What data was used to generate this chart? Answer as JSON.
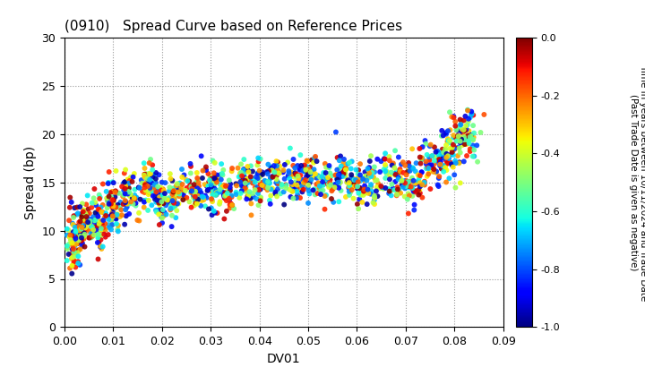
{
  "title": "(0910)   Spread Curve based on Reference Prices",
  "xlabel": "DV01",
  "ylabel": "Spread (bp)",
  "xlim": [
    0.0,
    0.09
  ],
  "ylim": [
    0,
    30
  ],
  "xticks": [
    0.0,
    0.01,
    0.02,
    0.03,
    0.04,
    0.05,
    0.06,
    0.07,
    0.08,
    0.09
  ],
  "yticks": [
    0,
    5,
    10,
    15,
    20,
    25,
    30
  ],
  "colorbar_label": "Time in years between 10/11/2024 and Trade Date\n(Past Trade Date is given as negative)",
  "colorbar_min": -1.0,
  "colorbar_max": 0.0,
  "colorbar_ticks": [
    0.0,
    -0.2,
    -0.4,
    -0.6,
    -0.8,
    -1.0
  ],
  "seed": 42,
  "figsize": [
    7.2,
    4.2
  ],
  "dpi": 100,
  "point_size": 18,
  "alpha": 0.9,
  "clusters": [
    {
      "dv01": 0.002,
      "spread": 9.0,
      "n": 80,
      "dv01_std": 0.0008,
      "spread_std": 1.8
    },
    {
      "dv01": 0.004,
      "spread": 10.5,
      "n": 70,
      "dv01_std": 0.0007,
      "spread_std": 1.5
    },
    {
      "dv01": 0.007,
      "spread": 11.0,
      "n": 80,
      "dv01_std": 0.0009,
      "spread_std": 1.6
    },
    {
      "dv01": 0.01,
      "spread": 12.5,
      "n": 70,
      "dv01_std": 0.0008,
      "spread_std": 1.4
    },
    {
      "dv01": 0.013,
      "spread": 13.5,
      "n": 60,
      "dv01_std": 0.0009,
      "spread_std": 1.3
    },
    {
      "dv01": 0.017,
      "spread": 14.5,
      "n": 70,
      "dv01_std": 0.001,
      "spread_std": 1.2
    },
    {
      "dv01": 0.02,
      "spread": 13.0,
      "n": 60,
      "dv01_std": 0.0009,
      "spread_std": 1.2
    },
    {
      "dv01": 0.023,
      "spread": 13.5,
      "n": 55,
      "dv01_std": 0.0009,
      "spread_std": 1.1
    },
    {
      "dv01": 0.027,
      "spread": 14.0,
      "n": 60,
      "dv01_std": 0.001,
      "spread_std": 1.1
    },
    {
      "dv01": 0.03,
      "spread": 14.5,
      "n": 55,
      "dv01_std": 0.001,
      "spread_std": 1.2
    },
    {
      "dv01": 0.033,
      "spread": 14.0,
      "n": 55,
      "dv01_std": 0.001,
      "spread_std": 1.1
    },
    {
      "dv01": 0.037,
      "spread": 15.0,
      "n": 55,
      "dv01_std": 0.0011,
      "spread_std": 1.2
    },
    {
      "dv01": 0.04,
      "spread": 15.0,
      "n": 50,
      "dv01_std": 0.0011,
      "spread_std": 1.2
    },
    {
      "dv01": 0.043,
      "spread": 15.5,
      "n": 50,
      "dv01_std": 0.0011,
      "spread_std": 1.1
    },
    {
      "dv01": 0.047,
      "spread": 15.0,
      "n": 50,
      "dv01_std": 0.0012,
      "spread_std": 1.2
    },
    {
      "dv01": 0.05,
      "spread": 15.5,
      "n": 50,
      "dv01_std": 0.0012,
      "spread_std": 1.2
    },
    {
      "dv01": 0.053,
      "spread": 15.0,
      "n": 50,
      "dv01_std": 0.0012,
      "spread_std": 1.1
    },
    {
      "dv01": 0.057,
      "spread": 15.5,
      "n": 50,
      "dv01_std": 0.0012,
      "spread_std": 1.2
    },
    {
      "dv01": 0.06,
      "spread": 15.0,
      "n": 50,
      "dv01_std": 0.0012,
      "spread_std": 1.1
    },
    {
      "dv01": 0.063,
      "spread": 15.0,
      "n": 50,
      "dv01_std": 0.0013,
      "spread_std": 1.2
    },
    {
      "dv01": 0.067,
      "spread": 15.5,
      "n": 50,
      "dv01_std": 0.0013,
      "spread_std": 1.2
    },
    {
      "dv01": 0.07,
      "spread": 15.0,
      "n": 50,
      "dv01_std": 0.0013,
      "spread_std": 1.1
    },
    {
      "dv01": 0.073,
      "spread": 16.0,
      "n": 50,
      "dv01_std": 0.0013,
      "spread_std": 1.3
    },
    {
      "dv01": 0.077,
      "spread": 17.5,
      "n": 60,
      "dv01_std": 0.0013,
      "spread_std": 1.4
    },
    {
      "dv01": 0.08,
      "spread": 19.0,
      "n": 60,
      "dv01_std": 0.0012,
      "spread_std": 1.5
    },
    {
      "dv01": 0.083,
      "spread": 20.0,
      "n": 55,
      "dv01_std": 0.0011,
      "spread_std": 1.5
    }
  ]
}
